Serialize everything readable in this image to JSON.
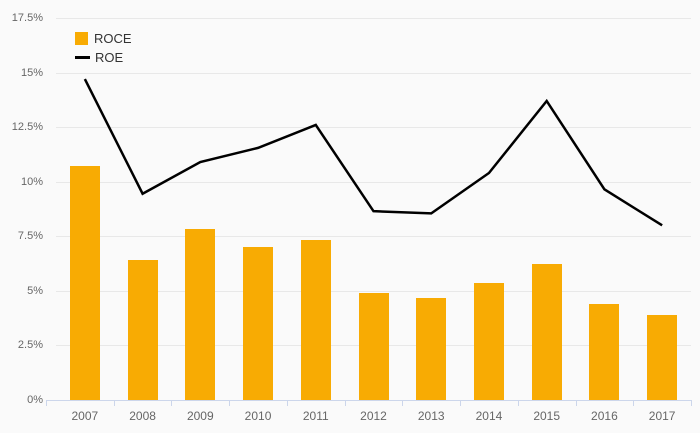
{
  "chart_data": {
    "type": "combo",
    "title": "",
    "categories": [
      "2007",
      "2008",
      "2009",
      "2010",
      "2011",
      "2012",
      "2013",
      "2014",
      "2015",
      "2016",
      "2017"
    ],
    "series": [
      {
        "name": "ROCE",
        "type": "bar",
        "color": "#F8AB03",
        "values": [
          10.7,
          6.4,
          7.85,
          7.0,
          7.35,
          4.9,
          4.65,
          5.35,
          6.25,
          4.4,
          3.9
        ]
      },
      {
        "name": "ROE",
        "type": "line",
        "color": "#000000",
        "values": [
          14.7,
          9.45,
          10.9,
          11.55,
          12.6,
          8.65,
          8.55,
          10.4,
          13.7,
          9.65,
          8.0
        ]
      }
    ],
    "xlabel": "",
    "ylabel": "",
    "ylim": [
      0,
      17.5
    ],
    "yticks": {
      "values": [
        0,
        2.5,
        5,
        7.5,
        10,
        12.5,
        15,
        17.5
      ],
      "labels": [
        "0%",
        "2.5%",
        "5%",
        "7.5%",
        "10%",
        "12.5%",
        "15%",
        "17.5%"
      ]
    },
    "grid": true,
    "legend_position": "top-left",
    "value_format": "percent"
  },
  "style": {
    "background": "#fafafa",
    "gridline_color": "#e8e8e8",
    "axis_line_color": "#ccd6eb",
    "tick_label_color": "#666666",
    "legend_text_color": "#333333"
  }
}
